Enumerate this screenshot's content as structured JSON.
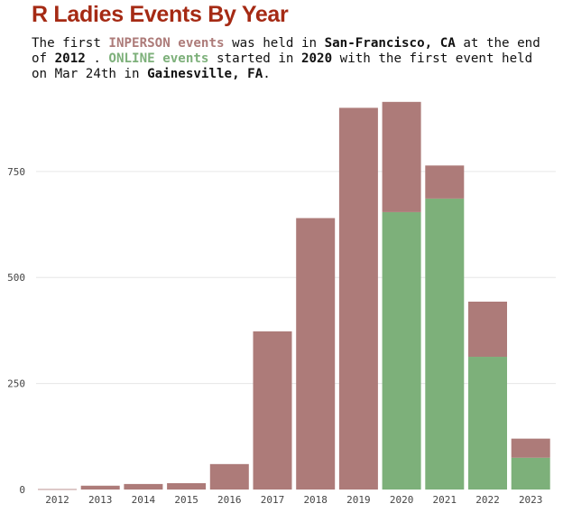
{
  "chart_data": {
    "type": "bar",
    "stacked": true,
    "title": "R Ladies Events By Year",
    "subtitle_parts": [
      "The first ",
      "INPERSON events",
      " was held in ",
      "San-Francisco, CA",
      " at the end\nof ",
      "2012",
      " . ",
      "ONLINE events",
      " started in  ",
      "2020",
      " with the first event held\non Mar 24th in ",
      "Gainesville, FA",
      "."
    ],
    "categories": [
      "2012",
      "2013",
      "2014",
      "2015",
      "2016",
      "2017",
      "2018",
      "2019",
      "2020",
      "2021",
      "2022",
      "2023"
    ],
    "series": [
      {
        "name": "ONLINE",
        "values": [
          0,
          0,
          0,
          0,
          0,
          0,
          0,
          0,
          654,
          686,
          313,
          75
        ]
      },
      {
        "name": "INPERSON",
        "values": [
          1,
          9,
          13,
          15,
          60,
          373,
          640,
          900,
          260,
          78,
          130,
          45
        ]
      }
    ],
    "yticks": [
      0,
      250,
      500,
      750
    ],
    "ylim": [
      0,
      920
    ],
    "grid": true,
    "colors": {
      "INPERSON": "#ad7b79",
      "ONLINE": "#7db07a",
      "title": "#a52a14"
    }
  }
}
